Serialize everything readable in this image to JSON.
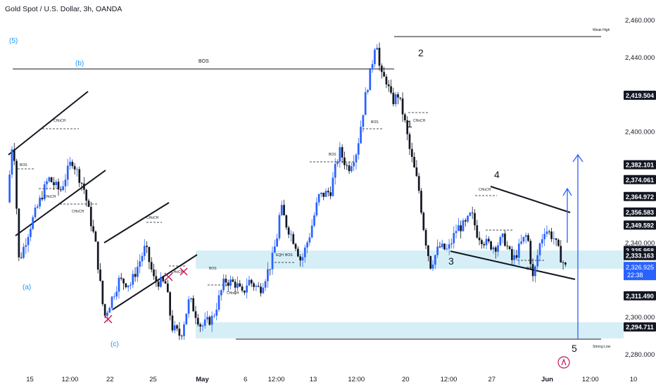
{
  "title": "Gold Spot / U.S. Dollar, 3h, OANDA",
  "chart_data": {
    "type": "candlestick",
    "symbol": "Gold Spot / U.S. Dollar",
    "interval": "3h",
    "source": "OANDA",
    "ylim": [
      2270,
      2470
    ],
    "y_ticks": [
      {
        "value": 2460,
        "label": "2,460.000"
      },
      {
        "value": 2440,
        "label": "2,440.000"
      },
      {
        "value": 2400,
        "label": "2,400.000"
      },
      {
        "value": 2340,
        "label": "2,340.000"
      },
      {
        "value": 2300,
        "label": "2,300.000"
      },
      {
        "value": 2280,
        "label": "2,280.000"
      }
    ],
    "price_labels": [
      {
        "value": 2419.504,
        "label": "2,419.504",
        "color": "#131722"
      },
      {
        "value": 2382.101,
        "label": "2,382.101",
        "color": "#131722"
      },
      {
        "value": 2374.061,
        "label": "2,374.061",
        "color": "#131722"
      },
      {
        "value": 2364.972,
        "label": "2,364.972",
        "color": "#131722"
      },
      {
        "value": 2356.583,
        "label": "2,356.583",
        "color": "#131722"
      },
      {
        "value": 2349.592,
        "label": "2,349.592",
        "color": "#131722"
      },
      {
        "value": 2335.958,
        "label": "2,335.958",
        "color": "#131722"
      },
      {
        "value": 2333.163,
        "label": "2,333.163",
        "color": "#131722"
      },
      {
        "value": 2311.49,
        "label": "2,311.490",
        "color": "#131722"
      },
      {
        "value": 2294.711,
        "label": "2,294.711",
        "color": "#131722"
      }
    ],
    "last_price": {
      "value": 2326.925,
      "label": "2,326.925",
      "countdown": "22:38",
      "color": "#2962ff"
    },
    "x_ticks": [
      "15",
      "12:00",
      "22",
      "25",
      "May",
      "6",
      "12:00",
      "13",
      "12:00",
      "20",
      "12:00",
      "27",
      "Jun",
      "12:00",
      "10"
    ],
    "x_tick_pos": [
      0.02,
      0.085,
      0.15,
      0.22,
      0.3,
      0.37,
      0.42,
      0.48,
      0.55,
      0.63,
      0.7,
      0.77,
      0.86,
      0.93,
      1.0
    ],
    "price_path": [
      [
        0.0,
        2362
      ],
      [
        0.01,
        2400
      ],
      [
        0.02,
        2330
      ],
      [
        0.04,
        2350
      ],
      [
        0.07,
        2375
      ],
      [
        0.09,
        2368
      ],
      [
        0.11,
        2385
      ],
      [
        0.13,
        2370
      ],
      [
        0.15,
        2340
      ],
      [
        0.165,
        2300
      ],
      [
        0.19,
        2320
      ],
      [
        0.21,
        2318
      ],
      [
        0.235,
        2338
      ],
      [
        0.25,
        2320
      ],
      [
        0.27,
        2318
      ],
      [
        0.28,
        2295
      ],
      [
        0.295,
        2290
      ],
      [
        0.31,
        2310
      ],
      [
        0.33,
        2295
      ],
      [
        0.35,
        2300
      ],
      [
        0.37,
        2320
      ],
      [
        0.39,
        2318
      ],
      [
        0.4,
        2312
      ],
      [
        0.41,
        2320
      ],
      [
        0.43,
        2315
      ],
      [
        0.45,
        2330
      ],
      [
        0.46,
        2345
      ],
      [
        0.465,
        2360
      ],
      [
        0.475,
        2350
      ],
      [
        0.49,
        2340
      ],
      [
        0.5,
        2330
      ],
      [
        0.515,
        2345
      ],
      [
        0.53,
        2365
      ],
      [
        0.55,
        2368
      ],
      [
        0.565,
        2390
      ],
      [
        0.58,
        2380
      ],
      [
        0.595,
        2390
      ],
      [
        0.61,
        2420
      ],
      [
        0.62,
        2435
      ],
      [
        0.628,
        2452
      ],
      [
        0.635,
        2430
      ],
      [
        0.645,
        2428
      ],
      [
        0.655,
        2416
      ],
      [
        0.665,
        2420
      ],
      [
        0.675,
        2408
      ],
      [
        0.685,
        2390
      ],
      [
        0.7,
        2370
      ],
      [
        0.71,
        2345
      ],
      [
        0.72,
        2328
      ],
      [
        0.735,
        2338
      ],
      [
        0.75,
        2336
      ],
      [
        0.765,
        2348
      ],
      [
        0.78,
        2350
      ],
      [
        0.79,
        2356
      ],
      [
        0.8,
        2345
      ],
      [
        0.815,
        2340
      ],
      [
        0.83,
        2338
      ],
      [
        0.845,
        2343
      ],
      [
        0.86,
        2330
      ],
      [
        0.875,
        2340
      ],
      [
        0.885,
        2345
      ],
      [
        0.895,
        2320
      ],
      [
        0.905,
        2338
      ],
      [
        0.915,
        2348
      ],
      [
        0.93,
        2343
      ],
      [
        0.94,
        2334
      ],
      [
        0.95,
        2327
      ]
    ],
    "annotations": {
      "wave_labels": [
        "(5)",
        "(b)",
        "(a)",
        "(c)",
        "1",
        "2",
        "3",
        "4",
        "5"
      ],
      "structure_labels": [
        "BOS",
        "CHoCH",
        "EQH",
        "Weak High",
        "Strong Low"
      ]
    },
    "grid": false,
    "colors": {
      "up": "#2962ff",
      "down": "#131722",
      "zone": "#d6eff6",
      "last_price": "#2962ff",
      "arrow": "#2962ff",
      "cross": "#c2185b"
    }
  }
}
